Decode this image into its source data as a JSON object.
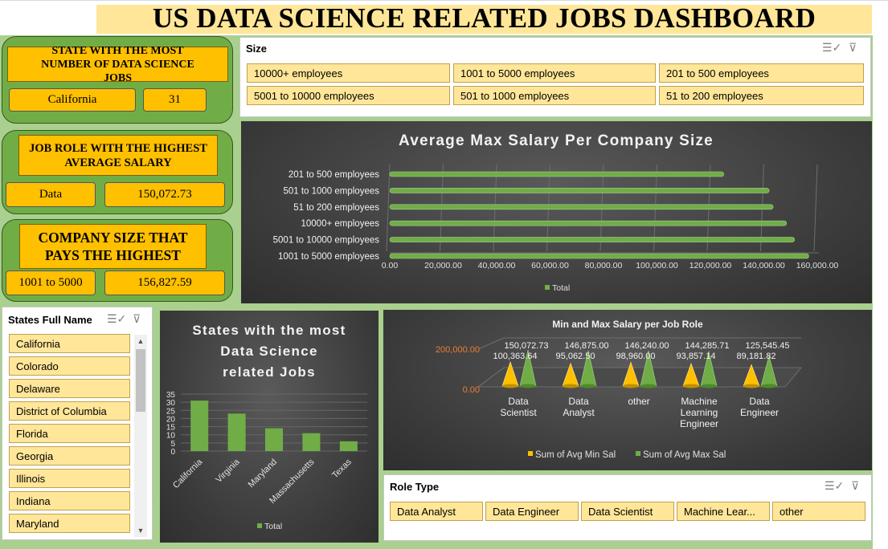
{
  "title": "US DATA SCIENCE RELATED JOBS DASHBOARD",
  "kpis": {
    "state": {
      "heading": "STATE WITH THE MOST NUMBER OF DATA SCIENCE JOBS",
      "name": "California",
      "count": "31"
    },
    "role": {
      "heading": "JOB ROLE WITH THE HIGHEST AVERAGE SALARY",
      "name": "Data",
      "value": "150,072.73"
    },
    "size": {
      "heading": "COMPANY SIZE THAT PAYS THE HIGHEST",
      "name": "1001 to 5000",
      "value": "156,827.59"
    }
  },
  "size_slicer": {
    "title": "Size",
    "items": [
      "10000+ employees",
      "1001 to 5000 employees",
      "201 to 500 employees",
      "5001 to 10000 employees",
      "501 to 1000 employees",
      "51 to 200 employees"
    ]
  },
  "states_slicer": {
    "title": "States Full Name",
    "items": [
      "California",
      "Colorado",
      "Delaware",
      "District of Columbia",
      "Florida",
      "Georgia",
      "Illinois",
      "Indiana",
      "Maryland"
    ]
  },
  "role_slicer": {
    "title": "Role Type",
    "items": [
      "Data Analyst",
      "Data Engineer",
      "Data Scientist",
      "Machine Lear...",
      "other"
    ]
  },
  "icons": {
    "multiselect": "multiselect-icon",
    "clear_filter": "clear-filter-icon",
    "scroll_up": "scroll-up-icon",
    "scroll_down": "scroll-down-icon"
  },
  "colors": {
    "green": "#70ad47",
    "gold": "#ffc000",
    "cream": "#ffe699",
    "dark": "#404040",
    "olive_bg": "#a9d08e",
    "orange_axis": "#ed7d31"
  },
  "chart_data": [
    {
      "type": "bar",
      "orientation": "horizontal",
      "title": "Average Max Salary Per Company Size",
      "categories": [
        "201 to 500 employees",
        "501 to 1000 employees",
        "51 to 200 employees",
        "10000+ employees",
        "5001 to 10000 employees",
        "1001 to 5000 employees"
      ],
      "series": [
        {
          "name": "Total",
          "values": [
            125000,
            142000,
            143500,
            148500,
            151500,
            156827.59
          ]
        }
      ],
      "xlim": [
        0,
        160000
      ],
      "xticks": [
        "0.00",
        "20,000.00",
        "40,000.00",
        "60,000.00",
        "80,000.00",
        "100,000.00",
        "120,000.00",
        "140,000.00",
        "160,000.00"
      ],
      "legend": "bottom",
      "grid": true
    },
    {
      "type": "bar",
      "title": "States with the most Data  Science related Jobs",
      "categories": [
        "California",
        "Virginia",
        "Maryland",
        "Massachusetts",
        "Texas"
      ],
      "series": [
        {
          "name": "Total",
          "values": [
            31,
            23,
            14,
            11,
            6
          ]
        }
      ],
      "ylim": [
        0,
        35
      ],
      "yticks": [
        "0",
        "5",
        "10",
        "15",
        "20",
        "25",
        "30",
        "35"
      ],
      "legend": "bottom",
      "grid": true
    },
    {
      "type": "bar",
      "title": "Min and Max Salary per Job Role",
      "categories": [
        "Data Scientist",
        "Data Analyst",
        "other",
        "Machine Learning Engineer",
        "Data Engineer"
      ],
      "series": [
        {
          "name": "Sum of Avg Min Sal",
          "values": [
            100363.64,
            95062.5,
            98960.0,
            93857.14,
            89181.82
          ],
          "labels": [
            "100,363.64",
            "95,062.50",
            "98,960.00",
            "93,857.14",
            "89,181.82"
          ]
        },
        {
          "name": "Sum of Avg Max Sal",
          "values": [
            150072.73,
            146875.0,
            146240.0,
            144285.71,
            125545.45
          ],
          "labels": [
            "150,072.73",
            "146,875.00",
            "146,240.00",
            "144,285.71",
            "125,545.45"
          ]
        }
      ],
      "yticks": [
        "0.00",
        "200,000.00"
      ],
      "legend": "bottom",
      "grid": false
    }
  ]
}
